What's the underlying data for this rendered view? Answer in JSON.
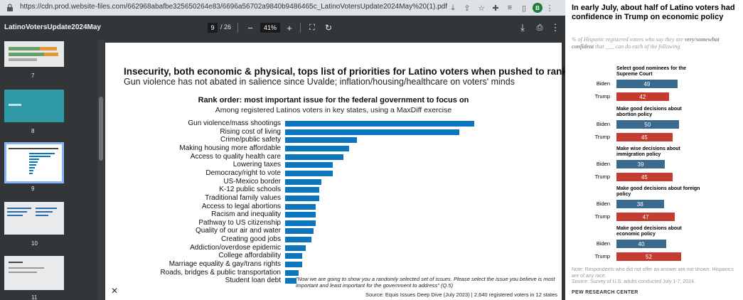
{
  "browser": {
    "url": "https://cdn.prod.website-files.com/662968abafbe325650264e83/6696a56702a9840b9486465c_LatinoVotersUpdate2024May%20(1).pdf",
    "avatar_letter": "B"
  },
  "pdf_toolbar": {
    "title": "LatinoVotersUpdate2024May",
    "current_page": "9",
    "total_pages": "/ 26",
    "zoom": "41%"
  },
  "thumbnails": [
    {
      "number": "7"
    },
    {
      "number": "8"
    },
    {
      "number": "9"
    },
    {
      "number": "10"
    },
    {
      "number": "11"
    }
  ],
  "page": {
    "headline": "Insecurity, both economic & physical, tops list of priorities for Latino voters when pushed to rank",
    "subheadline": "Gun violence has not abated in salience since Uvalde; inflation/housing/healthcare on voters' minds",
    "footnote": "\"Now we are going to show you a randomly selected set of issues. Please select the issue you believe is most important and least important for the government to address\" (Q.5)",
    "source": "Source: Equis Issues Deep Dive (July 2023) | 2,640 registered voters in 12 states"
  },
  "chart_data": {
    "type": "bar",
    "title": "Rank order: most important issue for the federal government to focus on",
    "subtitle": "Among registered Latinos voters in key states, using a MaxDiff exercise",
    "orientation": "horizontal",
    "categories": [
      "Gun violence/mass shootings",
      "Rising cost of living",
      "Crime/public safety",
      "Making housing more affordable",
      "Access to quality health care",
      "Lowering taxes",
      "Democracy/right to vote",
      "US-Mexico border",
      "K-12 public schools",
      "Traditional family values",
      "Access to legal abortions",
      "Racism and inequality",
      "Pathway to US citizenship",
      "Quality of our air and water",
      "Creating good jobs",
      "Addiction/overdose epidemic",
      "College affordability",
      "Marriage equality & gay/trans rights",
      "Roads, bridges & public transportation",
      "Student loan debt"
    ],
    "values": [
      100,
      92,
      38,
      34,
      31,
      25,
      25,
      19,
      18,
      18,
      16,
      16,
      16,
      15,
      14,
      11,
      9,
      9,
      7,
      6
    ]
  },
  "pew": {
    "title": "In early July, about half of Latino voters had confidence in Trump on economic policy",
    "subtitle_pre": "% of Hispanic registered voters who say they are ",
    "subtitle_bold": "very/somewhat confident",
    "subtitle_post": " that ___ can do each of the following",
    "biden_label": "Biden",
    "trump_label": "Trump",
    "biden_color": "#3a6b8f",
    "trump_color": "#c33c2f",
    "groups": [
      {
        "label": "Select good nominees for the Supreme Court",
        "biden": 49,
        "trump": 42
      },
      {
        "label": "Make good decisions about abortion policy",
        "biden": 50,
        "trump": 45
      },
      {
        "label": "Make wise decisions about immigration policy",
        "biden": 39,
        "trump": 45
      },
      {
        "label": "Make good decisions about foreign policy",
        "biden": 38,
        "trump": 47
      },
      {
        "label": "Make good decisions about economic policy",
        "biden": 40,
        "trump": 52
      }
    ],
    "note": "Note: Respondents who did not offer an answer are not shown. Hispanics are of any race.",
    "source": "Source: Survey of U.S. adults conducted July 1-7, 2024.",
    "logo": "PEW RESEARCH CENTER"
  }
}
